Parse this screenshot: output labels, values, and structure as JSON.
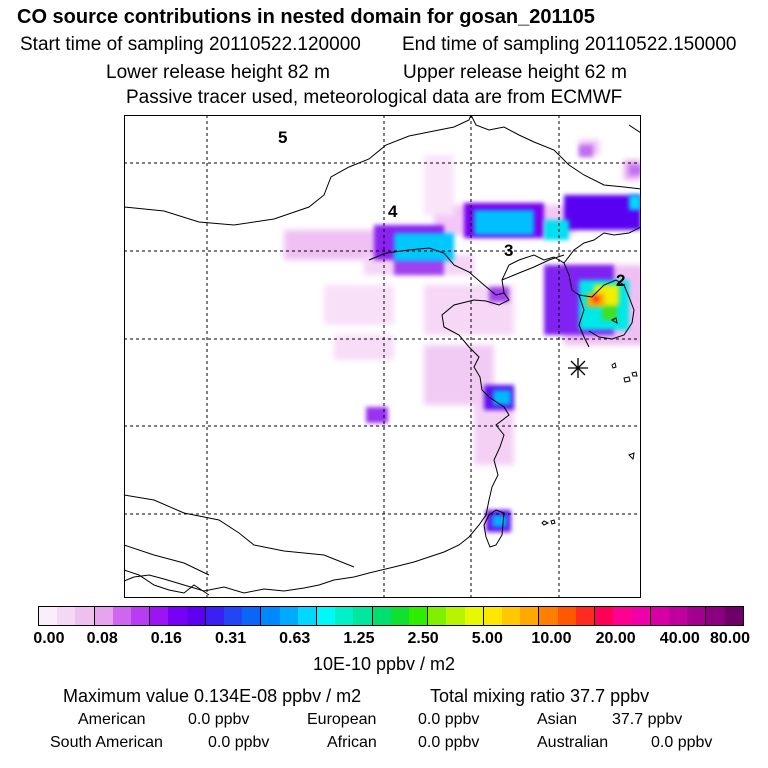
{
  "header": {
    "title": "CO  source contributions in nested domain for gosan_201105",
    "start_time": "Start time of sampling 20110522.120000",
    "end_time": "End time of sampling 20110522.150000",
    "lower_release": "Lower release height   82 m",
    "upper_release": "Upper release height   62 m",
    "tracer_note": "Passive tracer used, meteorological data are from ECMWF"
  },
  "map": {
    "region_labels": [
      "5",
      "4",
      "3",
      "2"
    ]
  },
  "colorbar": {
    "tick_labels": [
      "0.00",
      "0.08",
      "0.16",
      "0.31",
      "0.63",
      "1.25",
      "2.50",
      "5.00",
      "10.00",
      "20.00",
      "40.00",
      "80.00"
    ],
    "units": "10E-10 ppbv / m2",
    "colors": [
      "#fbeefb",
      "#f5d8f5",
      "#efc0ef",
      "#e6a3ee",
      "#cf66ee",
      "#b83cf2",
      "#9d14f4",
      "#7700f6",
      "#5d00f2",
      "#3a20f2",
      "#2346f5",
      "#0a66f8",
      "#0088ff",
      "#00aaff",
      "#00d8ff",
      "#00f8f6",
      "#00f0c8",
      "#00e8a0",
      "#00e070",
      "#10e030",
      "#30ec00",
      "#80f000",
      "#b8f400",
      "#e8f800",
      "#ffe800",
      "#ffc800",
      "#ffa800",
      "#ff8000",
      "#ff5800",
      "#ff2a20",
      "#ff0058",
      "#ff0090",
      "#f000a8",
      "#d800a4",
      "#c0009c",
      "#a40090",
      "#8a0080",
      "#6c0068"
    ]
  },
  "summary": {
    "max_value": "Maximum value  0.134E-08 ppbv / m2",
    "total_mixing": "Total mixing ratio       37.7 ppbv",
    "american_label": "American",
    "american_value": "0.0 ppbv",
    "european_label": "European",
    "european_value": "0.0 ppbv",
    "asian_label": "Asian",
    "asian_value": "37.7 ppbv",
    "south_american_label": "South American",
    "south_american_value": "0.0 ppbv",
    "african_label": "African",
    "african_value": "0.0 ppbv",
    "australian_label": "Australian",
    "australian_value": "0.0 ppbv"
  }
}
